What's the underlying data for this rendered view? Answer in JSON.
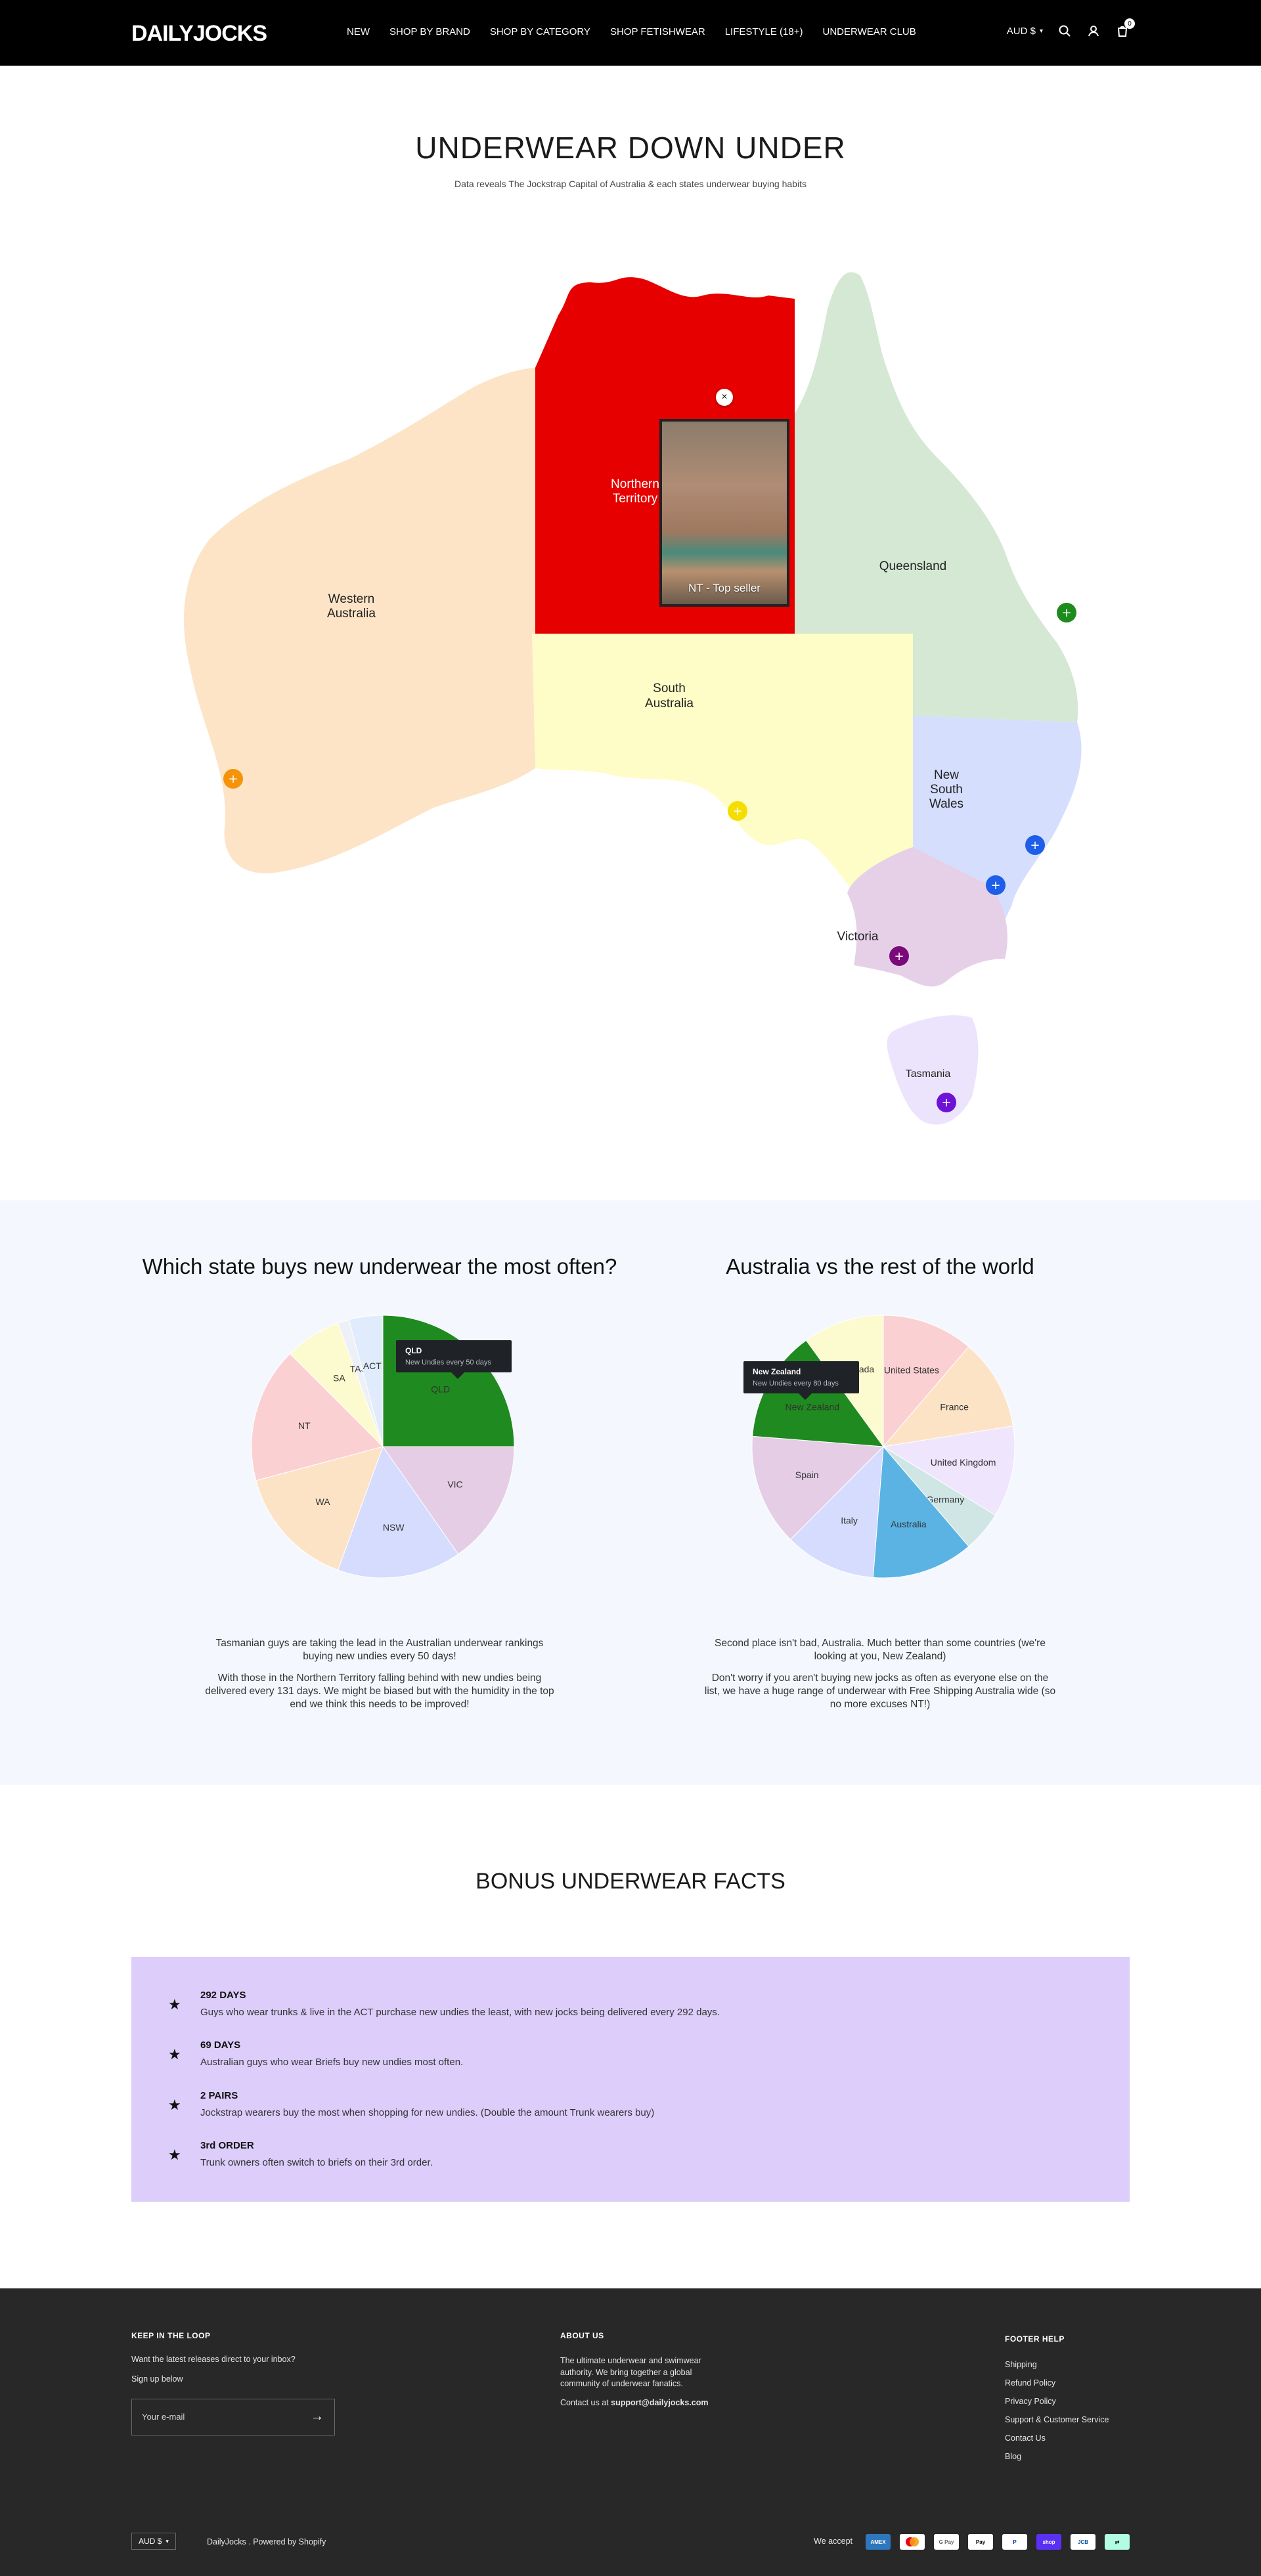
{
  "header": {
    "logo": "DAILYJOCKS",
    "nav": [
      "NEW",
      "SHOP BY BRAND",
      "SHOP BY CATEGORY",
      "SHOP FETISHWEAR",
      "LIFESTYLE (18+)",
      "UNDERWEAR CLUB"
    ],
    "currency": "AUD $",
    "cart_count": "0",
    "icons": [
      "search-icon",
      "account-icon",
      "user-icon",
      "cart-icon"
    ]
  },
  "hero": {
    "title": "UNDERWEAR DOWN UNDER",
    "subtitle": "Data reveals The Jockstrap Capital of Australia & each states underwear buying habits"
  },
  "map": {
    "states": {
      "wa": {
        "line1": "Western",
        "line2": "Australia",
        "color": "#fde4c7"
      },
      "nt": {
        "line1": "Northern",
        "line2": "Territory",
        "color": "#e60000"
      },
      "sa": {
        "line1": "South",
        "line2": "Australia",
        "color": "#fefcc7"
      },
      "qld": {
        "line1": "Queensland",
        "color": "#d4e8d4"
      },
      "nsw": {
        "line1": "New",
        "line2": "South",
        "line3": "Wales",
        "color": "#d6defe"
      },
      "vic": {
        "line1": "Victoria",
        "color": "#e6d0e8"
      },
      "tas": {
        "line1": "Tasmania",
        "color": "#ece4fc"
      }
    },
    "popup": {
      "caption": "NT - Top seller",
      "close": "×"
    },
    "pins": [
      {
        "name": "wa",
        "color": "#f5930a"
      },
      {
        "name": "sa",
        "color": "#f4de00"
      },
      {
        "name": "qld",
        "color": "#1d8c1d"
      },
      {
        "name": "nsw",
        "color": "#1e5ee8"
      },
      {
        "name": "act",
        "color": "#1e5ee8"
      },
      {
        "name": "vic",
        "color": "#7a0a7a"
      },
      {
        "name": "tas",
        "color": "#6c13d6"
      }
    ]
  },
  "states_section": {
    "title": "Which state buys new underwear the most often?",
    "tooltip": {
      "title": "QLD",
      "text": "New Undies every 50 days"
    },
    "paragraph1": "Tasmanian guys are taking the lead in the Australian underwear rankings buying new undies every 50 days!",
    "paragraph2": "With those in the Northern Territory falling behind with new undies being delivered every 131 days. We might be biased but with the humidity in the top end we think this needs to be improved!"
  },
  "world_section": {
    "title": "Australia vs the rest of the world",
    "tooltip": {
      "title": "New Zealand",
      "text": "New Undies every 80 days"
    },
    "paragraph1": "Second place isn't bad, Australia. Much better than some countries (we're looking at you, New Zealand)",
    "paragraph2": "Don't worry if you aren't buying new jocks as often as everyone else on the list, we have a huge range of underwear with Free Shipping Australia wide (so no more excuses NT!)"
  },
  "chart_data": [
    {
      "type": "pie",
      "title": "Which state buys new underwear the most often?",
      "categories": [
        "QLD",
        "VIC",
        "NSW",
        "WA",
        "NT",
        "SA",
        "TAS",
        "ACT"
      ],
      "values": [
        90,
        55,
        55,
        55,
        60,
        25,
        5,
        15
      ],
      "colors": [
        "#1f8a1f",
        "#e5cde6",
        "#d5dcfd",
        "#fde3c6",
        "#fbd0d2",
        "#fcfbd0",
        "#eef0f8",
        "#e0ecfb"
      ]
    },
    {
      "type": "pie",
      "title": "Australia vs the rest of the world",
      "categories": [
        "United States",
        "France",
        "United Kingdom",
        "Germany",
        "Australia",
        "Italy",
        "Spain",
        "New Zealand",
        "Canada"
      ],
      "values": [
        45,
        45,
        45,
        20,
        50,
        45,
        55,
        55,
        40
      ],
      "colors": [
        "#fbd0d2",
        "#fde3c6",
        "#efe5fd",
        "#cfe6e4",
        "#5ab3e3",
        "#d5dcfd",
        "#e5cde6",
        "#1f8a1f",
        "#fcfbd0"
      ]
    }
  ],
  "bonus": {
    "title": "BONUS UNDERWEAR FACTS",
    "facts": [
      {
        "title": "292 DAYS",
        "text": "Guys who wear trunks & live in the ACT purchase new undies the least, with new jocks being delivered every 292 days."
      },
      {
        "title": "69 DAYS",
        "text": "Australian guys who wear Briefs buy new undies most often."
      },
      {
        "title": "2 PAIRS",
        "text": "Jockstrap wearers buy the most when shopping for new undies. (Double the amount Trunk wearers buy)"
      },
      {
        "title": "3rd ORDER",
        "text": "Trunk owners often switch to briefs on their 3rd order."
      }
    ]
  },
  "footer": {
    "loop_title": "KEEP IN THE LOOP",
    "loop_text": "Want the latest releases direct to your inbox?",
    "signup": "Sign up below",
    "email_placeholder": "Your e-mail",
    "about_title": "ABOUT US",
    "about_text": "The ultimate underwear and swimwear authority. We bring together a global community of underwear fanatics.",
    "contact_prefix": "Contact us at ",
    "contact_email": "support@dailyjocks.com",
    "help_title": "FOOTER HELP",
    "help_links": [
      "Shipping",
      "Refund Policy",
      "Privacy Policy",
      "Support & Customer Service",
      "Contact Us",
      "Blog"
    ],
    "currency": "AUD $",
    "brand": "DailyJocks",
    "powered": "Powered by Shopify",
    "we_accept": "We accept",
    "payment_icons": [
      "amex-icon",
      "mastercard-icon",
      "google-pay-icon",
      "apple-pay-icon",
      "paypal-icon",
      "shop-pay-icon",
      "jcb-icon",
      "afterpay-icon"
    ]
  }
}
